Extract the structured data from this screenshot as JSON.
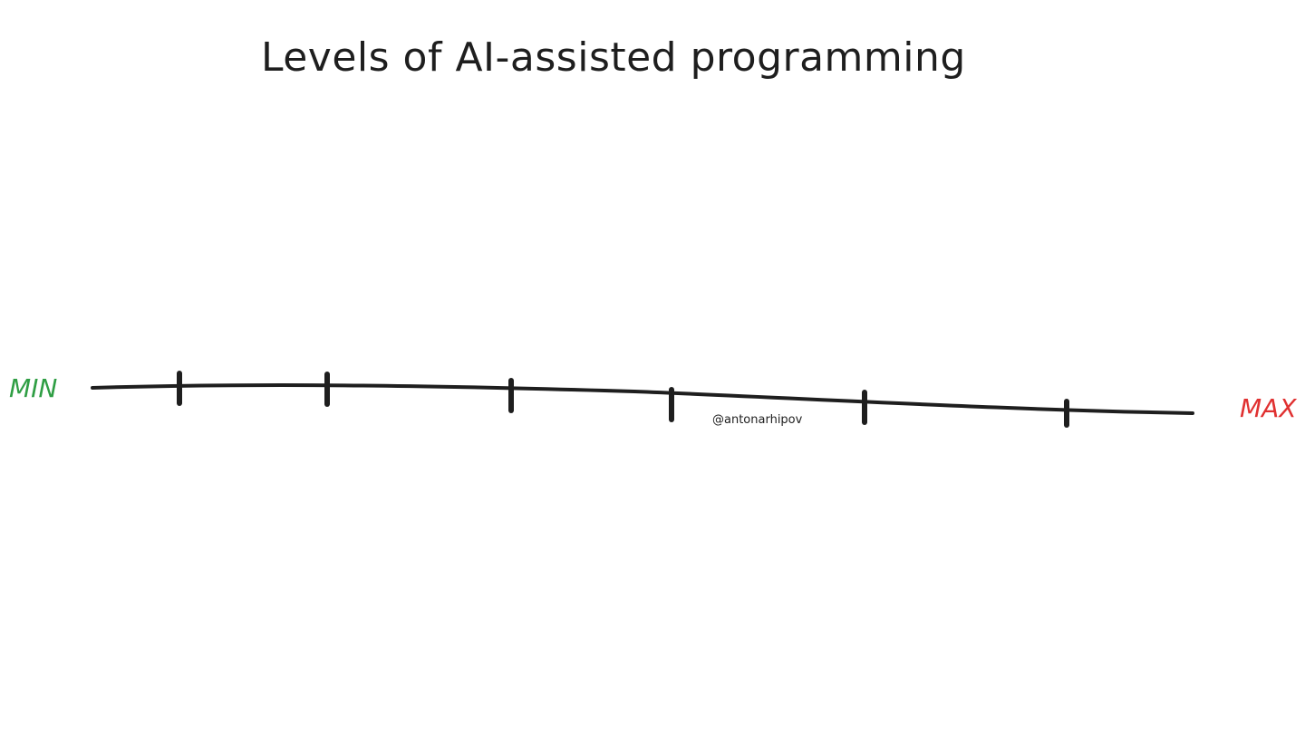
{
  "diagram": {
    "title": "Levels of AI-assisted programming",
    "scale": {
      "min_label": "MIN",
      "max_label": "MAX",
      "tick_count": 6
    },
    "author_handle": "@antonarhipov",
    "colors": {
      "stroke": "#1e1e1e",
      "min": "#2f9e44",
      "max": "#e03131"
    }
  }
}
